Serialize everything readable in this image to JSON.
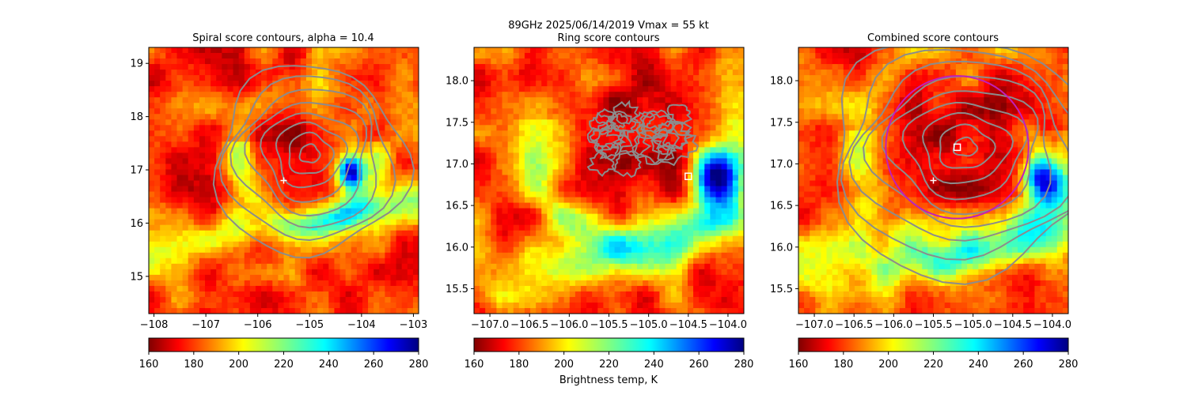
{
  "suptitle": {
    "line1": "89GHz  2025/06/14/2019    Vmax = 55 kt"
  },
  "colorbar_label": "Brightness temp, K",
  "colors": {
    "contour": "#8c8c8c",
    "ring_circle": "#c21fb7",
    "marker": "#ffffff",
    "axis": "#000000"
  },
  "chart_data": [
    {
      "type": "heatmap",
      "title": "Spiral score contours, alpha = 10.4",
      "xlim": [
        -108.1,
        -102.9
      ],
      "ylim": [
        14.3,
        19.3
      ],
      "x_ticks": [
        -108,
        -107,
        -106,
        -105,
        -104,
        -103
      ],
      "y_ticks": [
        15,
        16,
        17,
        18,
        19
      ],
      "colorbar": {
        "cmap": "jet_r",
        "range": [
          160,
          280
        ],
        "ticks": [
          160,
          180,
          200,
          220,
          240,
          260,
          280
        ]
      },
      "contours": {
        "center": [
          -105.0,
          17.3
        ],
        "levels": 8
      },
      "marker_plus": [
        -105.5,
        16.8
      ]
    },
    {
      "type": "heatmap",
      "title": "Ring score contours",
      "xlim": [
        -107.2,
        -103.8
      ],
      "ylim": [
        15.2,
        18.4
      ],
      "x_ticks": [
        -107.0,
        -106.5,
        -106.0,
        -105.5,
        -105.0,
        -104.5,
        -104.0
      ],
      "y_ticks": [
        15.5,
        16.0,
        16.5,
        17.0,
        17.5,
        18.0
      ],
      "colorbar": {
        "cmap": "jet_r",
        "range": [
          160,
          280
        ],
        "ticks": [
          160,
          180,
          200,
          220,
          240,
          260,
          280
        ]
      },
      "contours": {
        "center": [
          -105.1,
          17.3
        ],
        "extent_deg": 0.75
      },
      "marker_square": [
        -104.5,
        16.85
      ]
    },
    {
      "type": "heatmap",
      "title": "Combined score contours",
      "xlim": [
        -107.2,
        -103.8
      ],
      "ylim": [
        15.2,
        18.4
      ],
      "x_ticks": [
        -107.0,
        -106.5,
        -106.0,
        -105.5,
        -105.0,
        -104.5,
        -104.0
      ],
      "y_ticks": [
        15.5,
        16.0,
        16.5,
        17.0,
        17.5,
        18.0
      ],
      "colorbar": {
        "cmap": "jet_r",
        "range": [
          160,
          280
        ],
        "ticks": [
          160,
          180,
          200,
          220,
          240,
          260,
          280
        ]
      },
      "contours": {
        "center": [
          -105.1,
          17.2
        ],
        "levels": 9
      },
      "ring_circle": {
        "center": [
          -105.2,
          17.2
        ],
        "radius_deg": 0.9
      },
      "marker_square": [
        -105.2,
        17.2
      ],
      "marker_plus": [
        -105.5,
        16.8
      ]
    }
  ]
}
